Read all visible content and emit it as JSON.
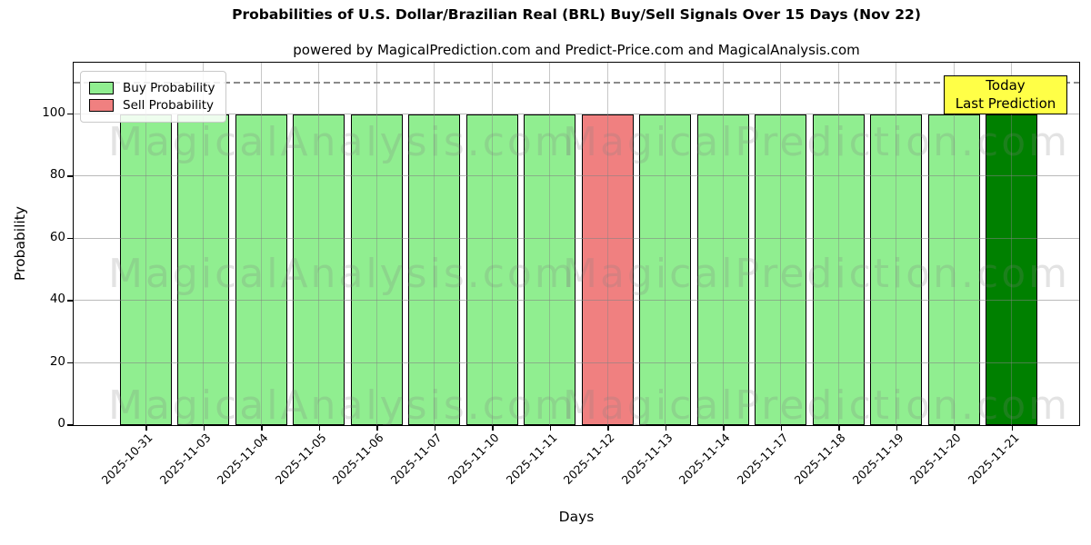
{
  "header": {
    "title": "Probabilities of U.S. Dollar/Brazilian Real (BRL) Buy/Sell Signals Over 15 Days (Nov 22)",
    "subtitle": "powered by MagicalPrediction.com and Predict-Price.com and MagicalAnalysis.com"
  },
  "chart_data": {
    "type": "bar",
    "title": "Probabilities of U.S. Dollar/Brazilian Real (BRL) Buy/Sell Signals Over 15 Days (Nov 22)",
    "xlabel": "Days",
    "ylabel": "Probability",
    "ylim": [
      0,
      117
    ],
    "yticks": [
      0,
      20,
      40,
      60,
      80,
      100
    ],
    "grid": true,
    "dashed_gridline_y": 110,
    "categories": [
      "2025-10-31",
      "2025-11-03",
      "2025-11-04",
      "2025-11-05",
      "2025-11-06",
      "2025-11-07",
      "2025-11-10",
      "2025-11-11",
      "2025-11-12",
      "2025-11-13",
      "2025-11-14",
      "2025-11-17",
      "2025-11-18",
      "2025-11-19",
      "2025-11-20",
      "2025-11-21"
    ],
    "values": [
      100,
      100,
      100,
      100,
      100,
      100,
      100,
      100,
      100,
      100,
      100,
      100,
      100,
      100,
      100,
      100
    ],
    "signals": [
      "buy",
      "buy",
      "buy",
      "buy",
      "buy",
      "buy",
      "buy",
      "buy",
      "sell",
      "buy",
      "buy",
      "buy",
      "buy",
      "buy",
      "buy",
      "today"
    ],
    "legend": {
      "position": "upper-left",
      "entries": [
        {
          "label": "Buy Probability",
          "color": "#90EE90"
        },
        {
          "label": "Sell Probability",
          "color": "#F08080"
        }
      ]
    },
    "colors": {
      "buy": "#90EE90",
      "sell": "#F08080",
      "today": "#008000",
      "annotation_bg": "#FFFF47",
      "grid": "#828282",
      "watermark": "#808080"
    },
    "annotation": {
      "lines": [
        "Today",
        "Last Prediction"
      ]
    },
    "watermarks": {
      "left": "MagicalAnalysis.com",
      "right": "MagicalPrediction.com"
    }
  }
}
